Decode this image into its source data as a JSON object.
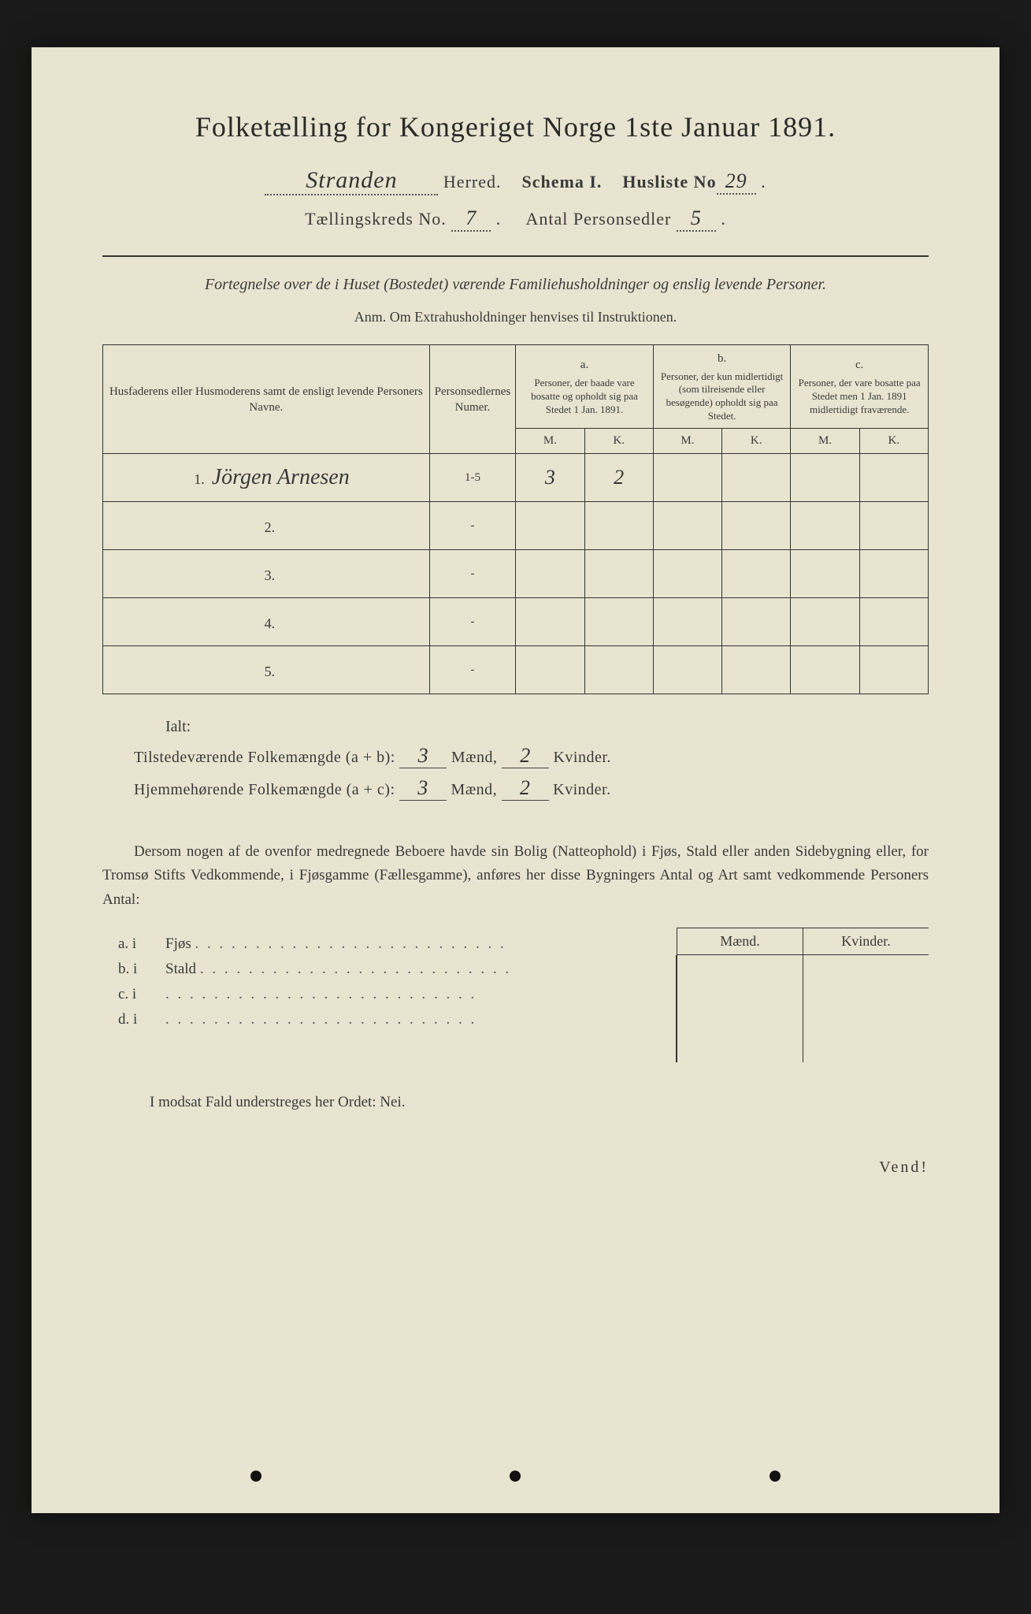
{
  "title": "Folketælling for Kongeriget Norge 1ste Januar 1891.",
  "header": {
    "herred_value": "Stranden",
    "herred_label": "Herred.",
    "schema_label": "Schema I.",
    "husliste_label": "Husliste No",
    "husliste_value": "29",
    "kreds_label": "Tællingskreds No.",
    "kreds_value": "7",
    "antal_label": "Antal Personsedler",
    "antal_value": "5"
  },
  "subtitle": "Fortegnelse over de i Huset (Bostedet) værende Familiehusholdninger og enslig levende Personer.",
  "anm": "Anm. Om Extrahusholdninger henvises til Instruktionen.",
  "table": {
    "col_name": "Husfaderens eller Husmoderens samt de ensligt levende Personers Navne.",
    "col_num": "Personsedlernes Numer.",
    "group_a": "a.",
    "group_a_desc": "Personer, der baade vare bosatte og opholdt sig paa Stedet 1 Jan. 1891.",
    "group_b": "b.",
    "group_b_desc": "Personer, der kun midlertidigt (som tilreisende eller besøgende) opholdt sig paa Stedet.",
    "group_c": "c.",
    "group_c_desc": "Personer, der vare bosatte paa Stedet men 1 Jan. 1891 midlertidigt fraværende.",
    "m": "M.",
    "k": "K.",
    "rows": [
      {
        "n": "1.",
        "name": "Jörgen Arnesen",
        "num": "1-5",
        "am": "3",
        "ak": "2",
        "bm": "",
        "bk": "",
        "cm": "",
        "ck": ""
      },
      {
        "n": "2.",
        "name": "",
        "num": "-",
        "am": "",
        "ak": "",
        "bm": "",
        "bk": "",
        "cm": "",
        "ck": ""
      },
      {
        "n": "3.",
        "name": "",
        "num": "-",
        "am": "",
        "ak": "",
        "bm": "",
        "bk": "",
        "cm": "",
        "ck": ""
      },
      {
        "n": "4.",
        "name": "",
        "num": "-",
        "am": "",
        "ak": "",
        "bm": "",
        "bk": "",
        "cm": "",
        "ck": ""
      },
      {
        "n": "5.",
        "name": "",
        "num": "-",
        "am": "",
        "ak": "",
        "bm": "",
        "bk": "",
        "cm": "",
        "ck": ""
      }
    ]
  },
  "ialt": "Ialt:",
  "totals": {
    "line1_label": "Tilstedeværende Folkemængde (a + b):",
    "line1_m": "3",
    "line1_k": "2",
    "line2_label": "Hjemmehørende Folkemængde (a + c):",
    "line2_m": "3",
    "line2_k": "2",
    "maend": "Mænd,",
    "kvinder": "Kvinder."
  },
  "paragraph": "Dersom nogen af de ovenfor medregnede Beboere havde sin Bolig (Natteophold) i Fjøs, Stald eller anden Sidebygning eller, for Tromsø Stifts Vedkommende, i Fjøsgamme (Fællesgamme), anføres her disse Bygningers Antal og Art samt vedkommende Personers Antal:",
  "mk_header": {
    "m": "Mænd.",
    "k": "Kvinder."
  },
  "buildings": [
    {
      "l": "a. i",
      "t": "Fjøs"
    },
    {
      "l": "b. i",
      "t": "Stald"
    },
    {
      "l": "c. i",
      "t": ""
    },
    {
      "l": "d. i",
      "t": ""
    }
  ],
  "nei": "I modsat Fald understreges her Ordet: Nei.",
  "vend": "Vend!"
}
